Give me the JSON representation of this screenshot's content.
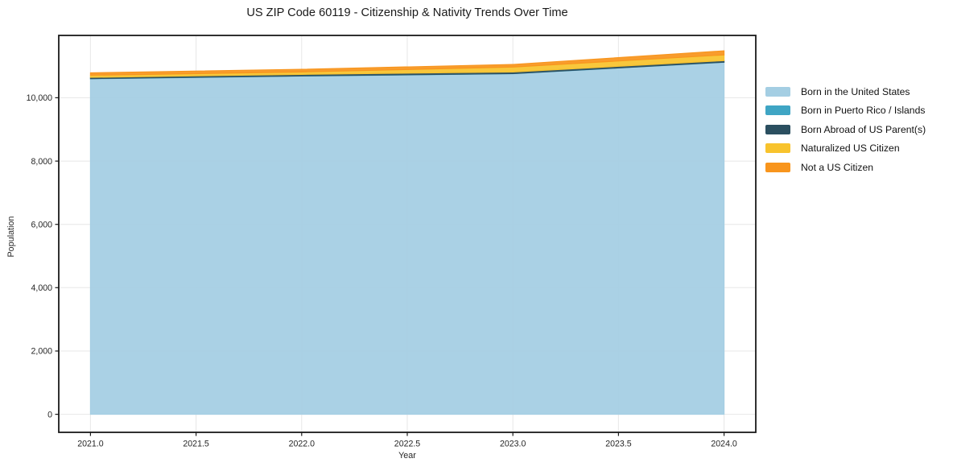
{
  "chart_data": {
    "type": "area",
    "stacked": true,
    "title": "US ZIP Code 60119 - Citizenship & Nativity Trends Over Time",
    "xlabel": "Year",
    "ylabel": "Population",
    "x": [
      2021,
      2022,
      2023,
      2024
    ],
    "series": [
      {
        "name": "Born in the United States",
        "color": "#a4cee3",
        "values": [
          10600,
          10685,
          10760,
          11120
        ]
      },
      {
        "name": "Born in Puerto Rico / Islands",
        "color": "#3fa5c4",
        "values": [
          5,
          5,
          5,
          5
        ]
      },
      {
        "name": "Born Abroad of US Parent(s)",
        "color": "#2b4f60",
        "values": [
          40,
          50,
          50,
          50
        ]
      },
      {
        "name": "Naturalized US Citizen",
        "color": "#f8c32d",
        "values": [
          65,
          75,
          155,
          180
        ]
      },
      {
        "name": "Not a US Citizen",
        "color": "#f8951d",
        "values": [
          80,
          85,
          85,
          130
        ]
      }
    ],
    "xlim": [
      2020.85,
      2024.15
    ],
    "ylim": [
      -570,
      11970
    ],
    "x_ticks": [
      {
        "v": 2021.0,
        "label": "2021.0"
      },
      {
        "v": 2021.5,
        "label": "2021.5"
      },
      {
        "v": 2022.0,
        "label": "2022.0"
      },
      {
        "v": 2022.5,
        "label": "2022.5"
      },
      {
        "v": 2023.0,
        "label": "2023.0"
      },
      {
        "v": 2023.5,
        "label": "2023.5"
      },
      {
        "v": 2024.0,
        "label": "2024.0"
      }
    ],
    "y_ticks": [
      {
        "v": 0,
        "label": "0"
      },
      {
        "v": 2000,
        "label": "2,000"
      },
      {
        "v": 4000,
        "label": "4,000"
      },
      {
        "v": 6000,
        "label": "6,000"
      },
      {
        "v": 8000,
        "label": "8,000"
      },
      {
        "v": 10000,
        "label": "10,000"
      }
    ],
    "grid": true,
    "grid_color": "#e7e7e7",
    "frame_color": "#1a1a1a",
    "legend_position": "right-outside"
  }
}
